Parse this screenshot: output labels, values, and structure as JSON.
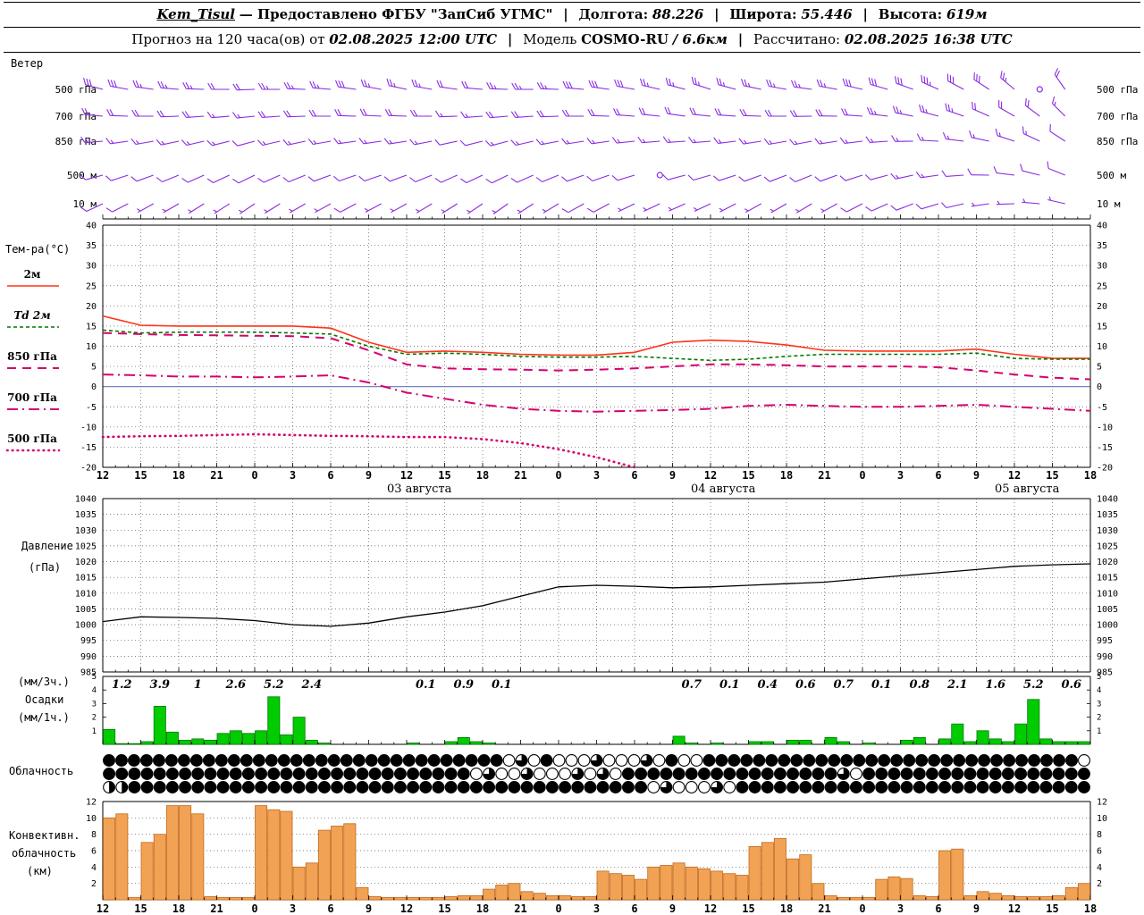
{
  "header": {
    "line1": {
      "station": "Kem_Tisul",
      "provider": "— Предоставлено ФГБУ \"ЗапСиб УГМС\"",
      "pipe": "|",
      "lon_label": "Долгота:",
      "lon_value": "88.226",
      "lat_label": "Широта:",
      "lat_value": "55.446",
      "alt_label": "Высота:",
      "alt_value": "619м"
    },
    "line2": {
      "prefix": "Прогноз на 120 часа(ов) от",
      "init_time": "02.08.2025 12:00 UTC",
      "pipe": "|",
      "model_label": "Модель",
      "model_name": "COSMO-RU",
      "model_res": "/ 6.6км",
      "calc_label": "Рассчитано:",
      "calc_time": "02.08.2025 16:38 UTC"
    }
  },
  "labels": {
    "wind_title": "Ветер",
    "temp_title": "Тем-ра(°C)",
    "pressure_title_1": "Давление",
    "pressure_title_2": "(гПа)",
    "precip_title_1": "(мм/3ч.)",
    "precip_title_2": "Осадки",
    "precip_title_3": "(мм/1ч.)",
    "cloud_title": "Облачность",
    "conv_title_1": "Конвективн.",
    "conv_title_2": "облачность",
    "conv_title_3": "(км)"
  },
  "colors": {
    "wind": "#8a2be2",
    "t2m": "#ff3319",
    "td": "#007700",
    "upper": "#d6006e",
    "pressure": "#000000",
    "precip_fill": "#00cc00",
    "precip_edge": "#007700",
    "conv_fill": "#f2a254",
    "conv_edge": "#c06a1e",
    "zero_line": "#6677bb"
  },
  "axis": {
    "span_hours": 78,
    "tick_step": 3,
    "tick_labels": [
      "12",
      "15",
      "18",
      "21",
      "0",
      "3",
      "6",
      "9",
      "12",
      "15",
      "18",
      "21",
      "0",
      "3",
      "6",
      "9",
      "12",
      "15",
      "18",
      "21",
      "0",
      "3",
      "6",
      "9",
      "12",
      "15",
      "18"
    ],
    "date_labels": [
      {
        "hour": 25,
        "text": "03 августа"
      },
      {
        "hour": 49,
        "text": "04 августа"
      },
      {
        "hour": 73,
        "text": "05 августа"
      }
    ]
  },
  "chart_data": [
    {
      "type": "wind-barbs",
      "panel": "Ветер",
      "step_hours": 2,
      "levels": [
        {
          "label": "500 гПа",
          "dirs": [
            285,
            280,
            278,
            275,
            272,
            270,
            268,
            270,
            272,
            275,
            278,
            280,
            282,
            280,
            278,
            275,
            272,
            270,
            272,
            275,
            278,
            280,
            283,
            285,
            288,
            285,
            282,
            280,
            278,
            280,
            283,
            286,
            290,
            294,
            298,
            303,
            310,
            318,
            325
          ],
          "spds": [
            30,
            28,
            27,
            25,
            25,
            22,
            22,
            24,
            25,
            27,
            28,
            26,
            25,
            23,
            22,
            22,
            24,
            25,
            26,
            28,
            30,
            29,
            27,
            26,
            25,
            24,
            23,
            24,
            25,
            26,
            28,
            30,
            32,
            33,
            30,
            28,
            26,
            2,
            20
          ]
        },
        {
          "label": "700 гПа",
          "dirs": [
            275,
            272,
            270,
            268,
            266,
            265,
            264,
            266,
            268,
            270,
            272,
            273,
            272,
            270,
            268,
            266,
            265,
            266,
            268,
            270,
            272,
            274,
            276,
            278,
            276,
            274,
            272,
            270,
            269,
            271,
            274,
            277,
            281,
            285,
            289,
            294,
            300,
            307,
            315
          ],
          "spds": [
            22,
            21,
            20,
            19,
            18,
            17,
            17,
            18,
            19,
            20,
            21,
            20,
            19,
            18,
            17,
            17,
            18,
            19,
            20,
            21,
            22,
            21,
            20,
            19,
            19,
            18,
            18,
            19,
            20,
            21,
            22,
            23,
            24,
            24,
            23,
            21,
            20,
            18,
            16
          ]
        },
        {
          "label": "850 гПа",
          "dirs": [
            265,
            262,
            260,
            258,
            257,
            256,
            255,
            257,
            258,
            260,
            262,
            262,
            261,
            259,
            258,
            256,
            255,
            257,
            259,
            261,
            262,
            264,
            265,
            266,
            265,
            263,
            261,
            260,
            259,
            261,
            263,
            266,
            269,
            273,
            277,
            282,
            288,
            295,
            303
          ],
          "spds": [
            16,
            15,
            15,
            14,
            13,
            13,
            12,
            13,
            14,
            15,
            15,
            14,
            14,
            13,
            12,
            12,
            13,
            14,
            15,
            15,
            16,
            15,
            15,
            14,
            14,
            13,
            13,
            14,
            14,
            15,
            16,
            16,
            17,
            17,
            16,
            15,
            14,
            13,
            12
          ]
        },
        {
          "label": "500 м",
          "dirs": [
            255,
            252,
            250,
            248,
            246,
            245,
            244,
            246,
            248,
            250,
            251,
            251,
            250,
            248,
            246,
            245,
            244,
            246,
            248,
            250,
            251,
            253,
            254,
            255,
            254,
            252,
            250,
            249,
            248,
            250,
            252,
            255,
            258,
            262,
            266,
            271,
            277,
            284,
            292
          ],
          "spds": [
            12,
            12,
            11,
            11,
            10,
            10,
            9,
            10,
            11,
            11,
            12,
            11,
            11,
            10,
            10,
            9,
            10,
            10,
            11,
            12,
            12,
            11,
            2,
            10,
            10,
            10,
            9,
            10,
            11,
            11,
            12,
            12,
            13,
            13,
            12,
            11,
            10,
            9,
            8
          ]
        },
        {
          "label": "10 м",
          "dirs": [
            245,
            243,
            241,
            240,
            238,
            237,
            236,
            238,
            240,
            241,
            242,
            242,
            241,
            239,
            238,
            236,
            235,
            237,
            239,
            241,
            242,
            244,
            245,
            246,
            245,
            243,
            241,
            240,
            239,
            241,
            243,
            246,
            249,
            253,
            257,
            262,
            268,
            275,
            283
          ],
          "spds": [
            8,
            8,
            7,
            7,
            6,
            6,
            5,
            6,
            7,
            7,
            8,
            7,
            7,
            6,
            6,
            5,
            6,
            6,
            7,
            8,
            8,
            7,
            7,
            6,
            6,
            6,
            5,
            6,
            7,
            7,
            8,
            8,
            9,
            9,
            8,
            7,
            6,
            5,
            4
          ]
        }
      ]
    },
    {
      "type": "line",
      "panel": "Температура",
      "ylabel": "°C",
      "ylim": [
        -20,
        40
      ],
      "ytick": 5,
      "step_hours": 3,
      "series": [
        {
          "name": "2м",
          "color_key": "t2m",
          "dash": "solid",
          "values": [
            17.5,
            15.2,
            15.0,
            15.0,
            15.0,
            15.0,
            14.5,
            11.0,
            8.5,
            8.8,
            8.5,
            8.0,
            7.8,
            7.8,
            8.5,
            11.0,
            11.5,
            11.2,
            10.3,
            9.0,
            8.8,
            8.8,
            8.8,
            9.3,
            8.0,
            7.0,
            7.0
          ]
        },
        {
          "name": "Td 2м",
          "color_key": "td",
          "dash": "dash",
          "values": [
            14.0,
            13.3,
            13.5,
            13.5,
            13.5,
            13.3,
            13.0,
            10.0,
            8.0,
            8.3,
            8.0,
            7.5,
            7.3,
            7.3,
            7.5,
            7.0,
            6.5,
            6.8,
            7.5,
            8.0,
            8.0,
            8.0,
            8.0,
            8.3,
            7.0,
            6.8,
            6.8
          ]
        },
        {
          "name": "850 гПа",
          "color_key": "upper",
          "dash": "longdash",
          "values": [
            13.3,
            13.0,
            12.8,
            12.7,
            12.6,
            12.5,
            12.0,
            9.0,
            5.5,
            4.5,
            4.3,
            4.2,
            4.0,
            4.2,
            4.5,
            5.0,
            5.5,
            5.5,
            5.3,
            5.0,
            5.0,
            5.0,
            4.8,
            4.0,
            3.0,
            2.2,
            1.8
          ]
        },
        {
          "name": "700 гПа",
          "color_key": "upper",
          "dash": "dashdot",
          "values": [
            3.0,
            2.8,
            2.5,
            2.5,
            2.3,
            2.5,
            2.8,
            1.0,
            -1.5,
            -3.0,
            -4.5,
            -5.5,
            -6.0,
            -6.2,
            -6.0,
            -5.8,
            -5.5,
            -4.8,
            -4.5,
            -4.8,
            -5.0,
            -5.0,
            -4.8,
            -4.5,
            -5.0,
            -5.5,
            -6.0
          ]
        },
        {
          "name": "500 гПа",
          "color_key": "upper",
          "dash": "dot",
          "values": [
            -12.5,
            -12.3,
            -12.2,
            -12.0,
            -11.8,
            -12.0,
            -12.2,
            -12.3,
            -12.5,
            -12.5,
            -13.0,
            -14.0,
            -15.5,
            -17.5,
            -20.0,
            null,
            null,
            null,
            null,
            null,
            null,
            null,
            null,
            null,
            null,
            null,
            null
          ]
        }
      ]
    },
    {
      "type": "line",
      "panel": "Давление (гПа)",
      "ylim": [
        985,
        1040
      ],
      "ytick": 5,
      "step_hours": 3,
      "series": [
        {
          "name": "Давление",
          "color_key": "pressure",
          "dash": "solid",
          "values": [
            1001,
            1002.5,
            1002.3,
            1002.0,
            1001.3,
            1000.0,
            999.5,
            1000.5,
            1002.5,
            1004.0,
            1006.0,
            1009.0,
            1012.0,
            1012.5,
            1012.2,
            1011.7,
            1012.0,
            1012.5,
            1013.0,
            1013.5,
            1014.5,
            1015.5,
            1016.5,
            1017.5,
            1018.5,
            1019.0,
            1019.3
          ]
        }
      ]
    },
    {
      "type": "bar",
      "panel": "Осадки (мм/1ч.)",
      "ylim": [
        0,
        5
      ],
      "yticks": [
        1,
        2,
        3,
        4,
        5
      ],
      "step_hours": 1,
      "values": [
        1.1,
        0.05,
        0.05,
        0.2,
        2.8,
        0.9,
        0.3,
        0.4,
        0.3,
        0.8,
        1.0,
        0.8,
        1.0,
        3.5,
        0.7,
        2.0,
        0.3,
        0.1,
        0,
        0,
        0,
        0,
        0,
        0,
        0.1,
        0,
        0,
        0.2,
        0.5,
        0.2,
        0.1,
        0,
        0,
        0,
        0,
        0,
        0,
        0,
        0,
        0,
        0,
        0,
        0,
        0,
        0,
        0.6,
        0.1,
        0,
        0.1,
        0,
        0,
        0.2,
        0.2,
        0,
        0.3,
        0.3,
        0,
        0.5,
        0.2,
        0,
        0.1,
        0,
        0,
        0.3,
        0.5,
        0,
        0.4,
        1.5,
        0.2,
        1.0,
        0.4,
        0.2,
        1.5,
        3.3,
        0.4,
        0.2,
        0.2,
        0.2
      ],
      "sum_labels": [
        {
          "hour": 1.5,
          "text": "1.2"
        },
        {
          "hour": 4.5,
          "text": "3.9"
        },
        {
          "hour": 7.5,
          "text": "1"
        },
        {
          "hour": 10.5,
          "text": "2.6"
        },
        {
          "hour": 13.5,
          "text": "5.2"
        },
        {
          "hour": 16.5,
          "text": "2.4"
        },
        {
          "hour": 25.5,
          "text": "0.1"
        },
        {
          "hour": 28.5,
          "text": "0.9"
        },
        {
          "hour": 31.5,
          "text": "0.1"
        },
        {
          "hour": 46.5,
          "text": "0.7"
        },
        {
          "hour": 49.5,
          "text": "0.1"
        },
        {
          "hour": 52.5,
          "text": "0.4"
        },
        {
          "hour": 55.5,
          "text": "0.6"
        },
        {
          "hour": 58.5,
          "text": "0.7"
        },
        {
          "hour": 61.5,
          "text": "0.1"
        },
        {
          "hour": 64.5,
          "text": "0.8"
        },
        {
          "hour": 67.5,
          "text": "2.1"
        },
        {
          "hour": 70.5,
          "text": "1.6"
        },
        {
          "hour": 73.5,
          "text": "5.2"
        },
        {
          "hour": 76.5,
          "text": "0.6"
        }
      ]
    },
    {
      "type": "cloud-symbols",
      "panel": "Облачность",
      "rows": [
        "8888888888888888888888888888888806080006000608008888888888888888888888888888880",
        "888888888888888888888888888880600600060608888888888888888860888888888888888888",
        "448888888888888888888888888888888888888888806000608888888888888888888888888888"
      ]
    },
    {
      "type": "bar",
      "panel": "Конвективная облачность (км)",
      "ylim": [
        0,
        12
      ],
      "yticks": [
        2,
        4,
        6,
        8,
        10,
        12
      ],
      "step_hours": 1,
      "values": [
        10,
        10.5,
        0.3,
        7,
        8,
        11.5,
        11.5,
        10.5,
        0.4,
        0.3,
        0.3,
        0.3,
        11.5,
        11,
        10.8,
        4,
        4.5,
        8.5,
        9,
        9.3,
        1.5,
        0.4,
        0.3,
        0.3,
        0.3,
        0.3,
        0.3,
        0.4,
        0.5,
        0.5,
        1.3,
        1.8,
        2,
        1,
        0.8,
        0.5,
        0.5,
        0.4,
        0.4,
        3.5,
        3.2,
        3,
        2.5,
        4,
        4.2,
        4.5,
        4,
        3.8,
        3.5,
        3.2,
        3,
        6.5,
        7,
        7.5,
        5,
        5.5,
        2,
        0.5,
        0.3,
        0.3,
        0.3,
        2.5,
        2.8,
        2.6,
        0.5,
        0.4,
        6,
        6.2,
        0.5,
        1,
        0.8,
        0.5,
        0.4,
        0.4,
        0.4,
        0.5,
        1.5,
        2
      ]
    }
  ]
}
